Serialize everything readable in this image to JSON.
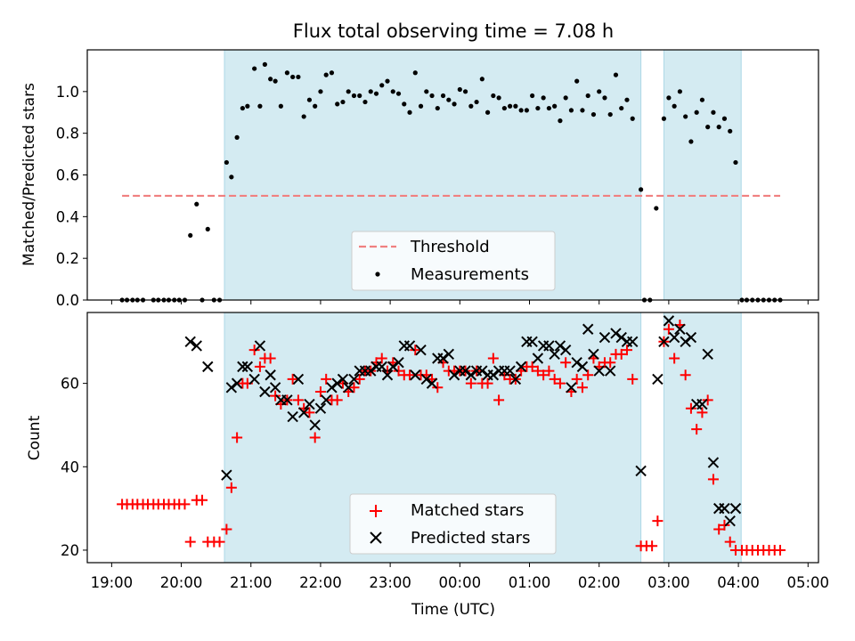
{
  "chart_data": {
    "title": "Flux total observing time = 7.08 h",
    "xlabel": "Time (UTC)",
    "x_unit": "hours since 19:00 UTC",
    "x_ticks": [
      {
        "v": 0,
        "label": "19:00"
      },
      {
        "v": 1,
        "label": "20:00"
      },
      {
        "v": 2,
        "label": "21:00"
      },
      {
        "v": 3,
        "label": "22:00"
      },
      {
        "v": 4,
        "label": "23:00"
      },
      {
        "v": 5,
        "label": "00:00"
      },
      {
        "v": 6,
        "label": "01:00"
      },
      {
        "v": 7,
        "label": "02:00"
      },
      {
        "v": 8,
        "label": "03:00"
      },
      {
        "v": 9,
        "label": "04:00"
      },
      {
        "v": 10,
        "label": "05:00"
      }
    ],
    "xlim": [
      -0.35,
      10.15
    ],
    "observing_windows": [
      [
        1.62,
        7.6
      ],
      [
        7.93,
        9.04
      ]
    ],
    "top": {
      "type": "scatter",
      "ylabel": "Matched/Predicted stars",
      "ylim": [
        0,
        1.2
      ],
      "y_ticks": [
        {
          "v": 0,
          "label": "0.0"
        },
        {
          "v": 0.2,
          "label": "0.2"
        },
        {
          "v": 0.4,
          "label": "0.4"
        },
        {
          "v": 0.6,
          "label": "0.6"
        },
        {
          "v": 0.8,
          "label": "0.8"
        },
        {
          "v": 1.0,
          "label": "1.0"
        }
      ],
      "threshold": {
        "value": 0.5,
        "x_range": [
          0.15,
          9.6
        ],
        "color": "#f08080"
      },
      "legend": {
        "position": "lower-center",
        "threshold_label": "Threshold",
        "measurements_label": "Measurements"
      },
      "measurements": [
        [
          0.15,
          0
        ],
        [
          0.22,
          0
        ],
        [
          0.3,
          0
        ],
        [
          0.37,
          0
        ],
        [
          0.45,
          0
        ],
        [
          0.6,
          0
        ],
        [
          0.67,
          0
        ],
        [
          0.75,
          0
        ],
        [
          0.82,
          0
        ],
        [
          0.9,
          0
        ],
        [
          0.97,
          0
        ],
        [
          1.05,
          0
        ],
        [
          1.13,
          0.31
        ],
        [
          1.22,
          0.46
        ],
        [
          1.3,
          0
        ],
        [
          1.38,
          0.34
        ],
        [
          1.47,
          0
        ],
        [
          1.55,
          0
        ],
        [
          1.65,
          0.66
        ],
        [
          1.72,
          0.59
        ],
        [
          1.8,
          0.78
        ],
        [
          1.88,
          0.92
        ],
        [
          1.95,
          0.93
        ],
        [
          2.05,
          1.11
        ],
        [
          2.13,
          0.93
        ],
        [
          2.2,
          1.13
        ],
        [
          2.28,
          1.06
        ],
        [
          2.35,
          1.05
        ],
        [
          2.43,
          0.93
        ],
        [
          2.52,
          1.09
        ],
        [
          2.6,
          1.07
        ],
        [
          2.68,
          1.07
        ],
        [
          2.76,
          0.88
        ],
        [
          2.84,
          0.96
        ],
        [
          2.92,
          0.93
        ],
        [
          3.0,
          1.0
        ],
        [
          3.08,
          1.08
        ],
        [
          3.16,
          1.09
        ],
        [
          3.24,
          0.94
        ],
        [
          3.32,
          0.95
        ],
        [
          3.4,
          1.0
        ],
        [
          3.48,
          0.98
        ],
        [
          3.56,
          0.98
        ],
        [
          3.64,
          0.95
        ],
        [
          3.72,
          1.0
        ],
        [
          3.8,
          0.99
        ],
        [
          3.88,
          1.03
        ],
        [
          3.96,
          1.05
        ],
        [
          4.04,
          1.0
        ],
        [
          4.12,
          0.99
        ],
        [
          4.2,
          0.94
        ],
        [
          4.28,
          0.9
        ],
        [
          4.36,
          1.09
        ],
        [
          4.44,
          0.93
        ],
        [
          4.52,
          1.0
        ],
        [
          4.6,
          0.98
        ],
        [
          4.68,
          0.92
        ],
        [
          4.76,
          0.98
        ],
        [
          4.84,
          0.96
        ],
        [
          4.92,
          0.94
        ],
        [
          5.0,
          1.01
        ],
        [
          5.08,
          1.0
        ],
        [
          5.16,
          0.93
        ],
        [
          5.24,
          0.95
        ],
        [
          5.32,
          1.06
        ],
        [
          5.4,
          0.9
        ],
        [
          5.48,
          0.98
        ],
        [
          5.56,
          0.97
        ],
        [
          5.64,
          0.92
        ],
        [
          5.72,
          0.93
        ],
        [
          5.8,
          0.93
        ],
        [
          5.88,
          0.91
        ],
        [
          5.96,
          0.91
        ],
        [
          6.04,
          0.98
        ],
        [
          6.12,
          0.92
        ],
        [
          6.2,
          0.97
        ],
        [
          6.28,
          0.92
        ],
        [
          6.36,
          0.93
        ],
        [
          6.44,
          0.86
        ],
        [
          6.52,
          0.97
        ],
        [
          6.6,
          0.91
        ],
        [
          6.68,
          1.05
        ],
        [
          6.76,
          0.91
        ],
        [
          6.84,
          0.98
        ],
        [
          6.92,
          0.89
        ],
        [
          7.0,
          1.0
        ],
        [
          7.08,
          0.97
        ],
        [
          7.16,
          0.89
        ],
        [
          7.24,
          1.08
        ],
        [
          7.32,
          0.92
        ],
        [
          7.4,
          0.96
        ],
        [
          7.48,
          0.87
        ],
        [
          7.6,
          0.53
        ],
        [
          7.65,
          0
        ],
        [
          7.73,
          0
        ],
        [
          7.82,
          0.44
        ],
        [
          7.93,
          0.87
        ],
        [
          8.0,
          0.97
        ],
        [
          8.08,
          0.93
        ],
        [
          8.16,
          1.0
        ],
        [
          8.24,
          0.88
        ],
        [
          8.32,
          0.76
        ],
        [
          8.4,
          0.9
        ],
        [
          8.48,
          0.96
        ],
        [
          8.56,
          0.83
        ],
        [
          8.64,
          0.9
        ],
        [
          8.72,
          0.83
        ],
        [
          8.8,
          0.87
        ],
        [
          8.88,
          0.81
        ],
        [
          8.96,
          0.66
        ],
        [
          9.05,
          0
        ],
        [
          9.12,
          0
        ],
        [
          9.2,
          0
        ],
        [
          9.28,
          0
        ],
        [
          9.36,
          0
        ],
        [
          9.44,
          0
        ],
        [
          9.52,
          0
        ],
        [
          9.6,
          0
        ]
      ]
    },
    "bottom": {
      "type": "scatter",
      "ylabel": "Count",
      "ylim": [
        17,
        77
      ],
      "y_ticks": [
        {
          "v": 20,
          "label": "20"
        },
        {
          "v": 40,
          "label": "40"
        },
        {
          "v": 60,
          "label": "60"
        }
      ],
      "legend": {
        "position": "lower-center",
        "matched_label": "Matched stars",
        "predicted_label": "Predicted stars"
      },
      "matched_color": "#ff0000",
      "predicted_color": "#000000",
      "matched": [
        [
          0.15,
          31
        ],
        [
          0.22,
          31
        ],
        [
          0.3,
          31
        ],
        [
          0.37,
          31
        ],
        [
          0.45,
          31
        ],
        [
          0.52,
          31
        ],
        [
          0.6,
          31
        ],
        [
          0.67,
          31
        ],
        [
          0.75,
          31
        ],
        [
          0.82,
          31
        ],
        [
          0.9,
          31
        ],
        [
          0.97,
          31
        ],
        [
          1.05,
          31
        ],
        [
          1.13,
          22
        ],
        [
          1.22,
          32
        ],
        [
          1.3,
          32
        ],
        [
          1.38,
          22
        ],
        [
          1.47,
          22
        ],
        [
          1.55,
          22
        ],
        [
          1.65,
          25
        ],
        [
          1.72,
          35
        ],
        [
          1.8,
          47
        ],
        [
          1.88,
          60
        ],
        [
          1.95,
          60
        ],
        [
          2.05,
          68
        ],
        [
          2.13,
          64
        ],
        [
          2.2,
          66
        ],
        [
          2.28,
          66
        ],
        [
          2.35,
          57
        ],
        [
          2.43,
          55
        ],
        [
          2.52,
          56
        ],
        [
          2.6,
          61
        ],
        [
          2.68,
          56
        ],
        [
          2.76,
          54
        ],
        [
          2.84,
          53
        ],
        [
          2.92,
          47
        ],
        [
          3.0,
          58
        ],
        [
          3.08,
          61
        ],
        [
          3.16,
          56
        ],
        [
          3.24,
          56
        ],
        [
          3.32,
          60
        ],
        [
          3.4,
          58
        ],
        [
          3.48,
          59
        ],
        [
          3.56,
          61
        ],
        [
          3.64,
          63
        ],
        [
          3.72,
          63
        ],
        [
          3.8,
          65
        ],
        [
          3.88,
          66
        ],
        [
          3.96,
          63
        ],
        [
          4.04,
          65
        ],
        [
          4.12,
          63
        ],
        [
          4.2,
          62
        ],
        [
          4.28,
          62
        ],
        [
          4.36,
          68
        ],
        [
          4.44,
          62
        ],
        [
          4.52,
          62
        ],
        [
          4.6,
          61
        ],
        [
          4.68,
          59
        ],
        [
          4.76,
          65
        ],
        [
          4.84,
          63
        ],
        [
          4.92,
          63
        ],
        [
          5.0,
          63
        ],
        [
          5.08,
          63
        ],
        [
          5.16,
          60
        ],
        [
          5.24,
          63
        ],
        [
          5.32,
          60
        ],
        [
          5.4,
          60
        ],
        [
          5.48,
          66
        ],
        [
          5.56,
          56
        ],
        [
          5.64,
          62
        ],
        [
          5.72,
          61
        ],
        [
          5.8,
          61
        ],
        [
          5.88,
          63
        ],
        [
          5.96,
          64
        ],
        [
          6.04,
          64
        ],
        [
          6.12,
          63
        ],
        [
          6.2,
          62
        ],
        [
          6.28,
          63
        ],
        [
          6.36,
          61
        ],
        [
          6.44,
          60
        ],
        [
          6.52,
          65
        ],
        [
          6.6,
          58
        ],
        [
          6.68,
          61
        ],
        [
          6.76,
          59
        ],
        [
          6.84,
          62
        ],
        [
          6.92,
          66
        ],
        [
          7.0,
          64
        ],
        [
          7.08,
          65
        ],
        [
          7.16,
          65
        ],
        [
          7.24,
          67
        ],
        [
          7.32,
          67
        ],
        [
          7.4,
          68
        ],
        [
          7.48,
          61
        ],
        [
          7.6,
          21
        ],
        [
          7.68,
          21
        ],
        [
          7.76,
          21
        ],
        [
          7.84,
          27
        ],
        [
          7.93,
          70
        ],
        [
          8.0,
          73
        ],
        [
          8.08,
          66
        ],
        [
          8.16,
          74
        ],
        [
          8.24,
          62
        ],
        [
          8.32,
          54
        ],
        [
          8.4,
          49
        ],
        [
          8.48,
          53
        ],
        [
          8.56,
          56
        ],
        [
          8.64,
          37
        ],
        [
          8.72,
          25
        ],
        [
          8.8,
          26
        ],
        [
          8.88,
          22
        ],
        [
          8.96,
          20
        ],
        [
          9.05,
          20
        ],
        [
          9.12,
          20
        ],
        [
          9.2,
          20
        ],
        [
          9.28,
          20
        ],
        [
          9.36,
          20
        ],
        [
          9.44,
          20
        ],
        [
          9.52,
          20
        ],
        [
          9.6,
          20
        ]
      ],
      "predicted": [
        [
          1.13,
          70
        ],
        [
          1.22,
          69
        ],
        [
          1.38,
          64
        ],
        [
          1.65,
          38
        ],
        [
          1.72,
          59
        ],
        [
          1.8,
          60
        ],
        [
          1.88,
          64
        ],
        [
          1.95,
          64
        ],
        [
          2.05,
          61
        ],
        [
          2.13,
          69
        ],
        [
          2.2,
          58
        ],
        [
          2.28,
          62
        ],
        [
          2.35,
          59
        ],
        [
          2.43,
          56
        ],
        [
          2.52,
          56
        ],
        [
          2.6,
          52
        ],
        [
          2.68,
          61
        ],
        [
          2.76,
          53
        ],
        [
          2.84,
          55
        ],
        [
          2.92,
          50
        ],
        [
          3.0,
          54
        ],
        [
          3.08,
          56
        ],
        [
          3.16,
          59
        ],
        [
          3.24,
          60
        ],
        [
          3.32,
          61
        ],
        [
          3.4,
          59
        ],
        [
          3.48,
          61
        ],
        [
          3.56,
          63
        ],
        [
          3.64,
          63
        ],
        [
          3.72,
          63
        ],
        [
          3.8,
          64
        ],
        [
          3.88,
          64
        ],
        [
          3.96,
          62
        ],
        [
          4.04,
          64
        ],
        [
          4.12,
          65
        ],
        [
          4.2,
          69
        ],
        [
          4.28,
          69
        ],
        [
          4.36,
          62
        ],
        [
          4.44,
          68
        ],
        [
          4.52,
          61
        ],
        [
          4.6,
          60
        ],
        [
          4.68,
          66
        ],
        [
          4.76,
          66
        ],
        [
          4.84,
          67
        ],
        [
          4.92,
          62
        ],
        [
          5.0,
          63
        ],
        [
          5.08,
          63
        ],
        [
          5.16,
          62
        ],
        [
          5.24,
          63
        ],
        [
          5.32,
          63
        ],
        [
          5.4,
          62
        ],
        [
          5.48,
          62
        ],
        [
          5.56,
          63
        ],
        [
          5.64,
          63
        ],
        [
          5.72,
          63
        ],
        [
          5.8,
          61
        ],
        [
          5.88,
          64
        ],
        [
          5.96,
          70
        ],
        [
          6.04,
          70
        ],
        [
          6.12,
          66
        ],
        [
          6.2,
          69
        ],
        [
          6.28,
          69
        ],
        [
          6.36,
          67
        ],
        [
          6.44,
          69
        ],
        [
          6.52,
          68
        ],
        [
          6.6,
          59
        ],
        [
          6.68,
          65
        ],
        [
          6.76,
          64
        ],
        [
          6.84,
          73
        ],
        [
          6.92,
          67
        ],
        [
          7.0,
          63
        ],
        [
          7.08,
          71
        ],
        [
          7.16,
          63
        ],
        [
          7.24,
          72
        ],
        [
          7.32,
          71
        ],
        [
          7.4,
          70
        ],
        [
          7.48,
          70
        ],
        [
          7.6,
          39
        ],
        [
          7.84,
          61
        ],
        [
          7.93,
          70
        ],
        [
          8.0,
          75
        ],
        [
          8.08,
          71
        ],
        [
          8.16,
          73
        ],
        [
          8.24,
          70
        ],
        [
          8.32,
          71
        ],
        [
          8.4,
          55
        ],
        [
          8.48,
          55
        ],
        [
          8.56,
          67
        ],
        [
          8.64,
          41
        ],
        [
          8.72,
          30
        ],
        [
          8.8,
          30
        ],
        [
          8.88,
          27
        ],
        [
          8.96,
          30
        ]
      ]
    }
  }
}
